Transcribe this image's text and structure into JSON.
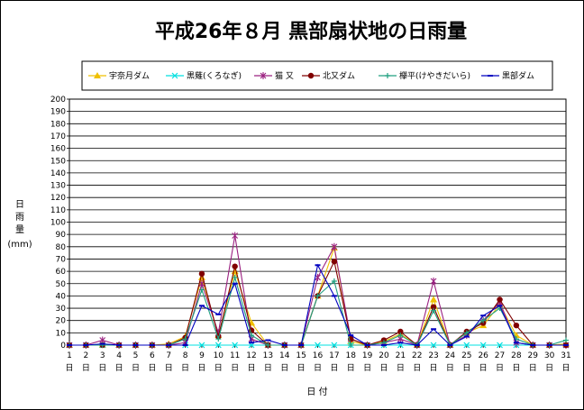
{
  "chart_data": {
    "type": "line",
    "title": "平成26年８月 黒部扇状地の日雨量",
    "ylabel": "日雨量",
    "yunit": "(mm)",
    "xlabel": "日 付",
    "ylim": [
      0,
      200
    ],
    "ytick_step": 10,
    "grid": true,
    "legend_position": "top",
    "categories": [
      "1",
      "2",
      "3",
      "4",
      "5",
      "6",
      "7",
      "8",
      "9",
      "10",
      "11",
      "12",
      "13",
      "14",
      "15",
      "16",
      "17",
      "18",
      "19",
      "20",
      "21",
      "22",
      "23",
      "24",
      "25",
      "26",
      "27",
      "28",
      "29",
      "30",
      "31"
    ],
    "category_suffix": "日",
    "series": [
      {
        "name": "宇奈月ダム",
        "color": "#f0c000",
        "marker": "triangle",
        "values": [
          0,
          0,
          0,
          0,
          0,
          0,
          1,
          7,
          55,
          8,
          60,
          18,
          0,
          0,
          0,
          40,
          79,
          3,
          0,
          3,
          9,
          0,
          37,
          0,
          10,
          16,
          33,
          8,
          0,
          0,
          1
        ]
      },
      {
        "name": "黒薙(くろなぎ)",
        "color": "#00e0e0",
        "marker": "x",
        "values": [
          0,
          0,
          0,
          0,
          0,
          0,
          0,
          0,
          0,
          0,
          0,
          0,
          0,
          0,
          0,
          0,
          0,
          0,
          0,
          0,
          0,
          0,
          0,
          0,
          0,
          0,
          0,
          0,
          0,
          0,
          0
        ]
      },
      {
        "name": "猫 又",
        "color": "#9a2080",
        "marker": "star",
        "values": [
          0,
          0,
          4,
          0,
          0,
          0,
          0,
          2,
          50,
          10,
          89,
          5,
          0,
          0,
          0,
          55,
          80,
          5,
          0,
          2,
          5,
          0,
          52,
          0,
          8,
          20,
          35,
          2,
          0,
          0,
          0
        ]
      },
      {
        "name": "北又ダム",
        "color": "#800000",
        "marker": "circle",
        "values": [
          0,
          0,
          0,
          0,
          0,
          0,
          0,
          6,
          58,
          7,
          64,
          12,
          0,
          0,
          0,
          40,
          68,
          5,
          0,
          4,
          11,
          0,
          31,
          0,
          11,
          18,
          37,
          16,
          0,
          0,
          0
        ]
      },
      {
        "name": "欅平(けやきだいら)",
        "color": "#20a080",
        "marker": "plus",
        "values": [
          0,
          0,
          0,
          0,
          0,
          0,
          0,
          5,
          45,
          5,
          55,
          8,
          0,
          0,
          0,
          40,
          52,
          0,
          0,
          2,
          8,
          0,
          28,
          0,
          10,
          20,
          30,
          5,
          0,
          0,
          4
        ]
      },
      {
        "name": "黒部ダム",
        "color": "#0000c0",
        "marker": "dash",
        "values": [
          0,
          0,
          1,
          0,
          0,
          0,
          0,
          0,
          32,
          25,
          50,
          2,
          4,
          0,
          0,
          65,
          40,
          8,
          0,
          0,
          2,
          0,
          13,
          0,
          7,
          24,
          32,
          2,
          0,
          0,
          0
        ]
      }
    ]
  }
}
